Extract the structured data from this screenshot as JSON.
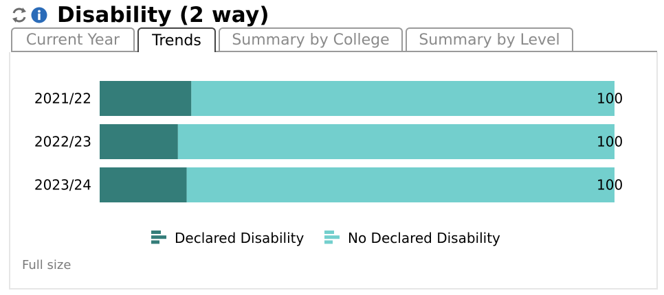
{
  "header": {
    "refresh_icon": "refresh-icon",
    "info_icon": "info-icon",
    "title": "Disability (2 way)"
  },
  "tabs": [
    {
      "label": "Current Year",
      "active": false
    },
    {
      "label": "Trends",
      "active": true
    },
    {
      "label": "Summary by College",
      "active": false
    },
    {
      "label": "Summary by Level",
      "active": false
    }
  ],
  "colors": {
    "declared": "#347d79",
    "no_declared": "#73cfcd",
    "info": "#2a6bb8"
  },
  "chart_data": {
    "type": "bar",
    "orientation": "horizontal",
    "stacked": true,
    "categories": [
      "2021/22",
      "2022/23",
      "2023/24"
    ],
    "series": [
      {
        "name": "Declared Disability",
        "values": [
          17.8,
          15.2,
          16.9
        ]
      },
      {
        "name": "No Declared Disability",
        "values": [
          82.2,
          84.8,
          83.1
        ]
      }
    ],
    "totals": [
      "100",
      "100",
      "100"
    ],
    "xlim": [
      0,
      100
    ],
    "grid": false,
    "legend": "bottom"
  },
  "footer": {
    "full_size_label": "Full size"
  }
}
